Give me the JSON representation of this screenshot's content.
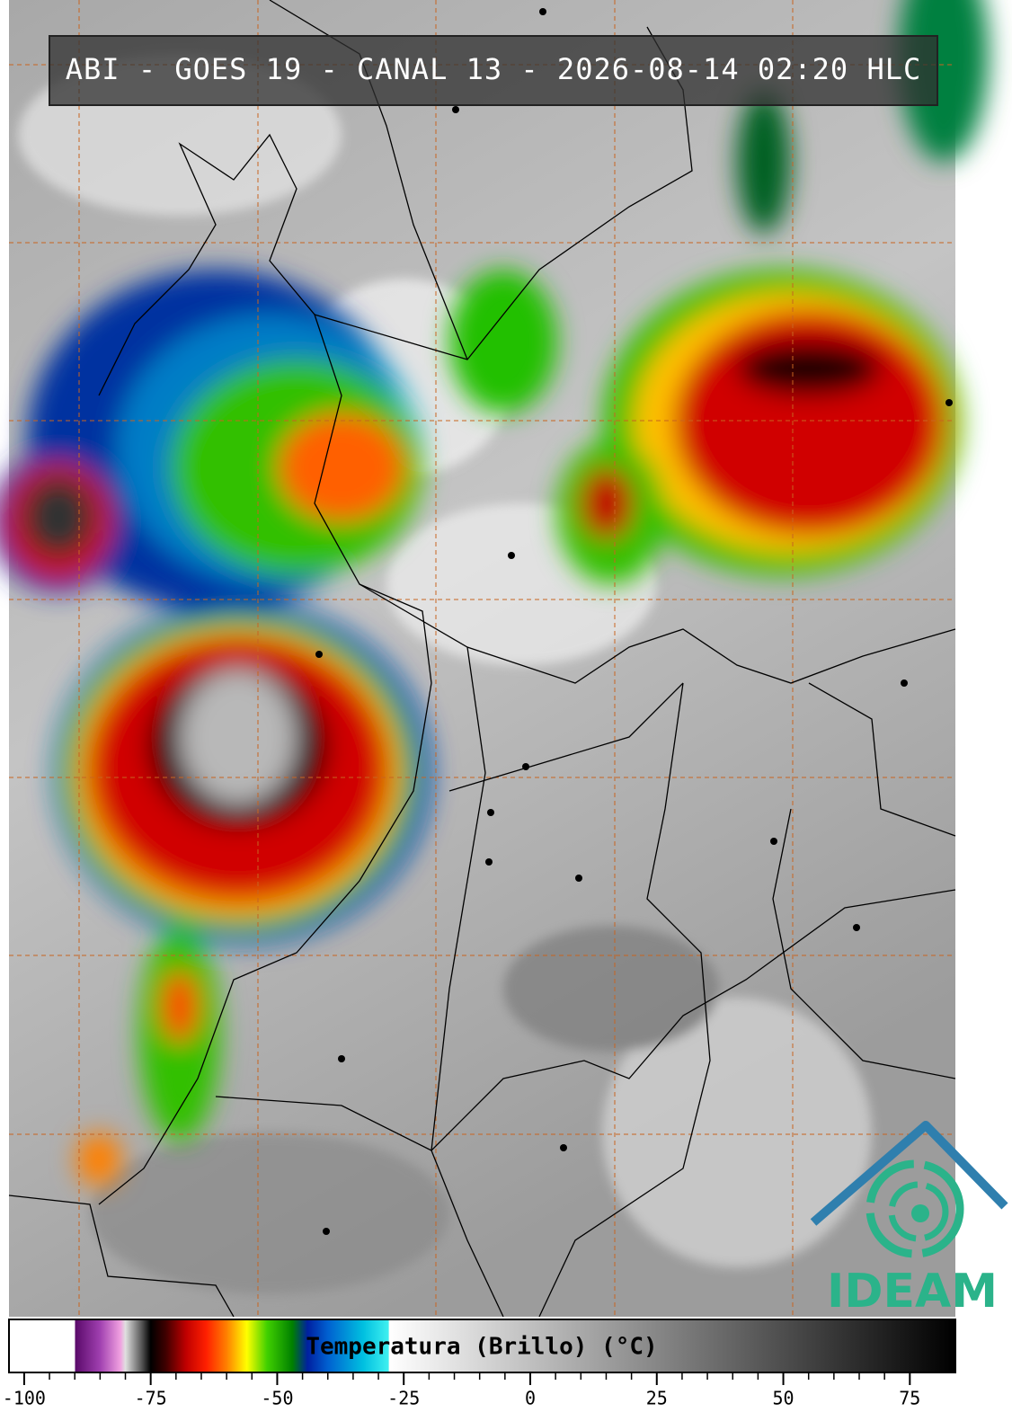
{
  "header": {
    "title": "ABI - GOES 19 - CANAL 13 - 2026-08-14 02:20 HLC"
  },
  "colorbar": {
    "label": "Temperatura (Brillo) (°C)",
    "xlim": [
      -103,
      84
    ],
    "ticks": [
      -100,
      -75,
      -50,
      -25,
      0,
      25,
      50,
      75
    ],
    "colormap": [
      [
        -103,
        "#ffffff"
      ],
      [
        -90,
        "#ffffff"
      ],
      [
        -89.9,
        "#5a0a6a"
      ],
      [
        -85,
        "#a040b0"
      ],
      [
        -81,
        "#f0a0e0"
      ],
      [
        -80,
        "#e0e0e0"
      ],
      [
        -77,
        "#606060"
      ],
      [
        -75,
        "#000000"
      ],
      [
        -72,
        "#400000"
      ],
      [
        -68,
        "#c00000"
      ],
      [
        -64,
        "#ff2000"
      ],
      [
        -60,
        "#ff8000"
      ],
      [
        -56,
        "#ffff00"
      ],
      [
        -52,
        "#40d000"
      ],
      [
        -47,
        "#008000"
      ],
      [
        -44,
        "#0020a0"
      ],
      [
        -40,
        "#0060d0"
      ],
      [
        -33,
        "#00c0e0"
      ],
      [
        -28,
        "#40f0f0"
      ],
      [
        -27.9,
        "#ffffff"
      ],
      [
        84,
        "#000000"
      ]
    ]
  },
  "logo": {
    "text": "IDEAM"
  }
}
